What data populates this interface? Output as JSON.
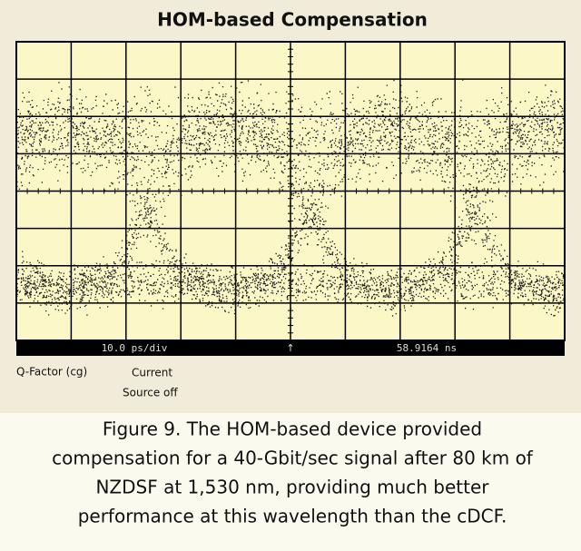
{
  "title": "HOM-based Compensation",
  "scope": {
    "timebase": "10.0 ps/div",
    "marker": "↑",
    "position": "58.9164 ns"
  },
  "readout": {
    "left": "Q-Factor (cg)",
    "right": [
      "Current",
      "Source off"
    ]
  },
  "caption": [
    "Figure 9. The HOM-based device provided",
    "compensation for a 40-Gbit/sec signal after 80 km of",
    "NZDSF at 1,530 nm, providing much better",
    "performance at this wavelength than the cDCF."
  ]
}
